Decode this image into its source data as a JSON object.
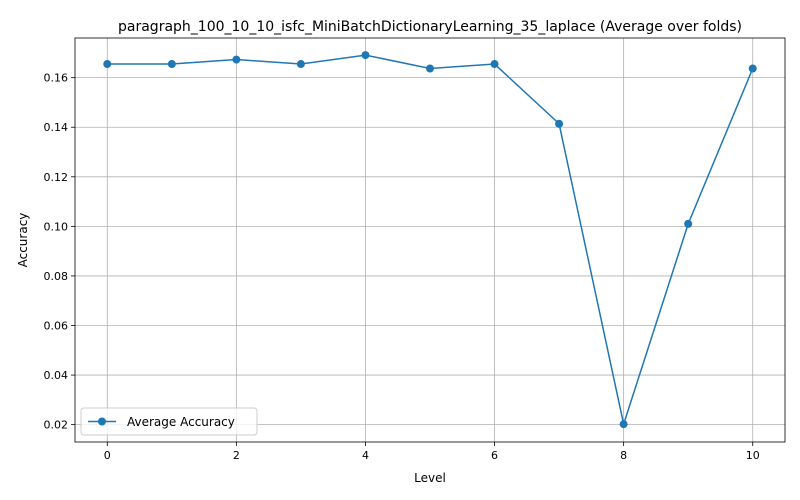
{
  "chart_data": {
    "type": "line",
    "title": "paragraph_100_10_10_isfc_MiniBatchDictionaryLearning_35_laplace (Average over folds)",
    "xlabel": "Level",
    "ylabel": "Accuracy",
    "xlim": [
      -0.5,
      10.5
    ],
    "ylim": [
      0.013,
      0.176
    ],
    "xticks": [
      0,
      2,
      4,
      6,
      8,
      10
    ],
    "xtick_labels": [
      "0",
      "2",
      "4",
      "6",
      "8",
      "10"
    ],
    "yticks": [
      0.02,
      0.04,
      0.06,
      0.08,
      0.1,
      0.12,
      0.14,
      0.16
    ],
    "ytick_labels": [
      "0.02",
      "0.04",
      "0.06",
      "0.08",
      "0.10",
      "0.12",
      "0.14",
      "0.16"
    ],
    "grid": true,
    "legend_position": "lower-left",
    "x": [
      0,
      1,
      2,
      3,
      4,
      5,
      6,
      7,
      8,
      9,
      10
    ],
    "series": [
      {
        "name": "Average Accuracy",
        "color": "#1f77b4",
        "marker": "circle",
        "values": [
          0.1655,
          0.1655,
          0.1673,
          0.1655,
          0.1691,
          0.1637,
          0.1655,
          0.1414,
          0.0202,
          0.101,
          0.1637
        ]
      }
    ]
  }
}
